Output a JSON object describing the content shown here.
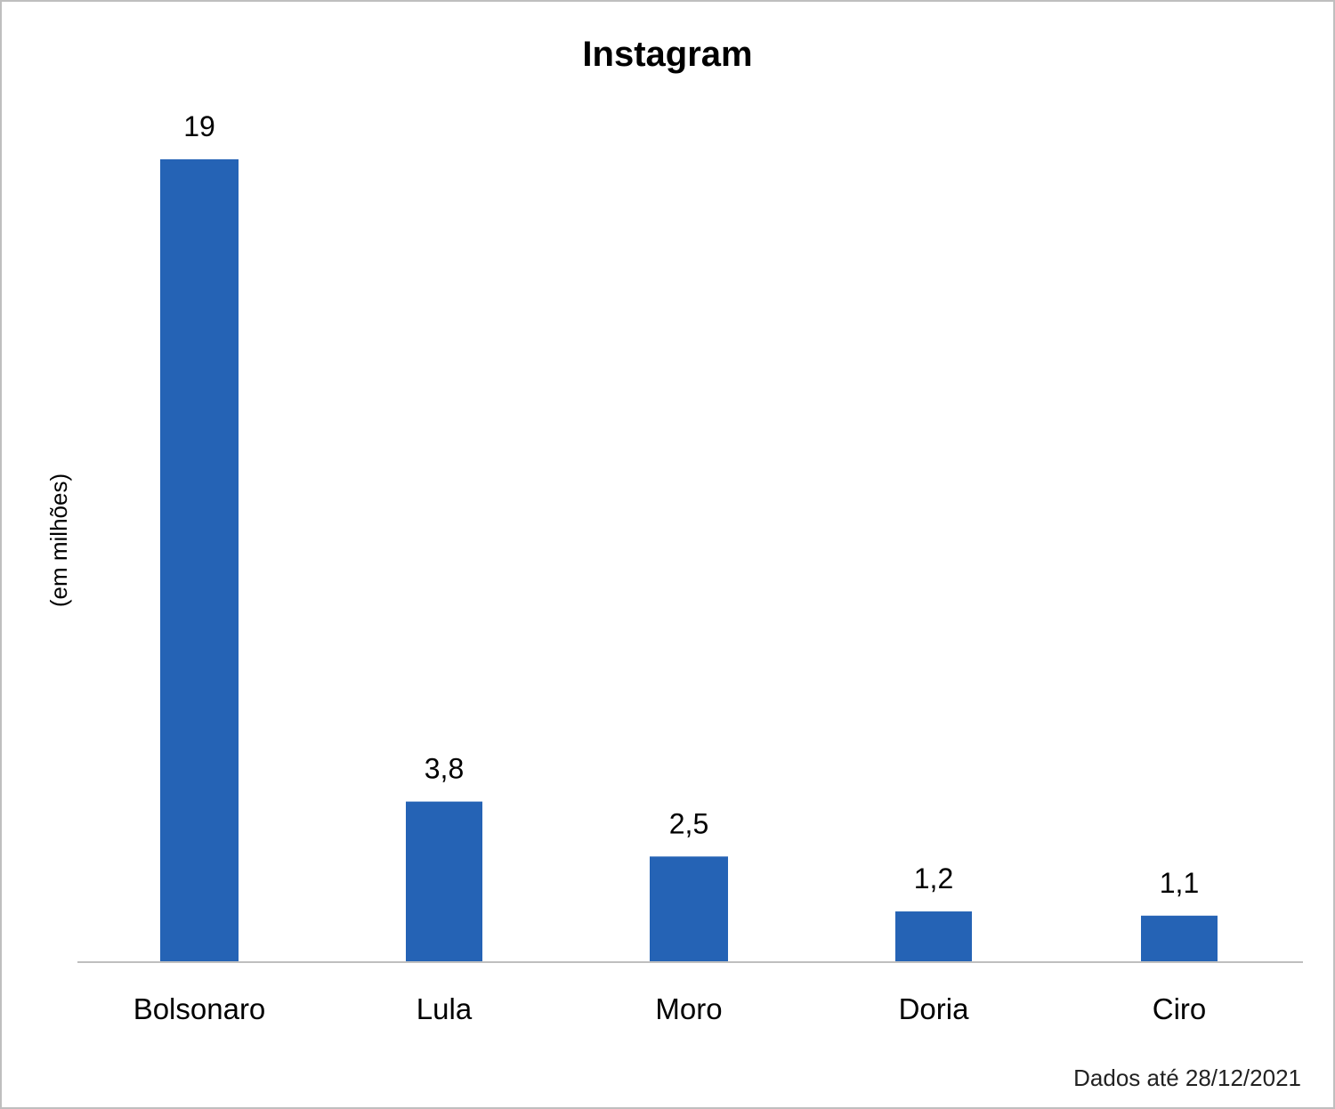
{
  "chart_data": {
    "type": "bar",
    "title": "Instagram",
    "xlabel": "",
    "ylabel": "(em milhões)",
    "categories": [
      "Bolsonaro",
      "Lula",
      "Moro",
      "Doria",
      "Ciro"
    ],
    "values": [
      19,
      3.8,
      2.5,
      1.2,
      1.1
    ],
    "value_labels": [
      "19",
      "3,8",
      "2,5",
      "1,2",
      "1,1"
    ],
    "ylim": [
      0,
      19
    ],
    "grid": false,
    "legend": "none",
    "bar_color": "#2563b5",
    "axis_color": "#bfbfbf"
  },
  "note": "Dados até 28/12/2021"
}
